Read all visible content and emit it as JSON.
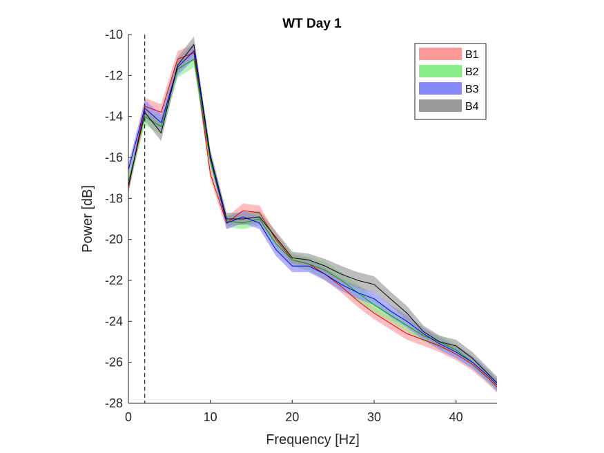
{
  "chart_data": {
    "type": "line",
    "title": "WT Day 1",
    "xlabel": "Frequency [Hz]",
    "ylabel": "Power [dB]",
    "xlim": [
      0,
      45
    ],
    "ylim": [
      -28,
      -10
    ],
    "xticks": [
      0,
      10,
      20,
      30,
      40
    ],
    "yticks": [
      -28,
      -26,
      -24,
      -22,
      -20,
      -18,
      -16,
      -14,
      -12,
      -10
    ],
    "xtick_labels": [
      "0",
      "10",
      "20",
      "30",
      "40"
    ],
    "ytick_labels": [
      "-28",
      "-26",
      "-24",
      "-22",
      "-20",
      "-18",
      "-16",
      "-14",
      "-12",
      "-10"
    ],
    "grid": false,
    "legend_position": "top-right",
    "reference_line_x": 2,
    "x": [
      0,
      2,
      4,
      6,
      8,
      10,
      12,
      14,
      16,
      18,
      20,
      22,
      24,
      26,
      28,
      30,
      32,
      34,
      36,
      38,
      40,
      42,
      44,
      45
    ],
    "series": [
      {
        "name": "B1",
        "line_color": "#e00000",
        "band_color": "#ff9999",
        "values": [
          -17.5,
          -13.5,
          -13.8,
          -11.2,
          -10.9,
          -16.8,
          -19.2,
          -18.6,
          -18.7,
          -20.0,
          -21.0,
          -21.2,
          -21.7,
          -22.3,
          -23.0,
          -23.6,
          -24.1,
          -24.6,
          -24.9,
          -25.2,
          -25.6,
          -26.1,
          -26.8,
          -27.2
        ],
        "band_halfwidth": [
          0.3,
          0.4,
          0.4,
          0.4,
          0.4,
          0.3,
          0.3,
          0.35,
          0.35,
          0.3,
          0.3,
          0.3,
          0.3,
          0.3,
          0.3,
          0.3,
          0.3,
          0.3,
          0.3,
          0.3,
          0.3,
          0.3,
          0.3,
          0.3
        ]
      },
      {
        "name": "B2",
        "line_color": "#00a000",
        "band_color": "#88ee88",
        "values": [
          -17.2,
          -14.0,
          -14.5,
          -11.7,
          -11.2,
          -16.2,
          -19.1,
          -19.2,
          -19.0,
          -20.2,
          -21.0,
          -21.2,
          -21.5,
          -22.0,
          -22.6,
          -23.2,
          -23.7,
          -24.2,
          -24.7,
          -25.0,
          -25.4,
          -26.0,
          -26.7,
          -27.1
        ],
        "band_halfwidth": [
          0.3,
          0.4,
          0.4,
          0.4,
          0.4,
          0.3,
          0.3,
          0.3,
          0.3,
          0.3,
          0.3,
          0.35,
          0.4,
          0.4,
          0.4,
          0.35,
          0.3,
          0.3,
          0.3,
          0.3,
          0.3,
          0.3,
          0.3,
          0.3
        ]
      },
      {
        "name": "B3",
        "line_color": "#0000e0",
        "band_color": "#8888ff",
        "values": [
          -16.6,
          -13.6,
          -14.3,
          -11.6,
          -10.8,
          -16.0,
          -19.2,
          -18.9,
          -19.2,
          -20.5,
          -21.3,
          -21.3,
          -21.7,
          -22.2,
          -22.6,
          -22.9,
          -23.5,
          -24.0,
          -24.6,
          -25.1,
          -25.5,
          -26.0,
          -26.7,
          -27.1
        ],
        "band_halfwidth": [
          0.3,
          0.4,
          0.4,
          0.4,
          0.4,
          0.3,
          0.3,
          0.3,
          0.3,
          0.3,
          0.3,
          0.3,
          0.3,
          0.3,
          0.3,
          0.3,
          0.3,
          0.3,
          0.3,
          0.3,
          0.3,
          0.3,
          0.3,
          0.3
        ]
      },
      {
        "name": "B4",
        "line_color": "#000000",
        "band_color": "#999999",
        "values": [
          -17.4,
          -13.8,
          -14.8,
          -11.5,
          -10.5,
          -15.9,
          -19.0,
          -19.0,
          -18.9,
          -19.9,
          -20.9,
          -21.0,
          -21.3,
          -21.7,
          -22.0,
          -22.2,
          -22.9,
          -23.6,
          -24.5,
          -25.0,
          -25.2,
          -25.8,
          -26.6,
          -27.0
        ],
        "band_halfwidth": [
          0.3,
          0.4,
          0.4,
          0.4,
          0.4,
          0.3,
          0.3,
          0.3,
          0.3,
          0.3,
          0.3,
          0.3,
          0.35,
          0.4,
          0.4,
          0.4,
          0.35,
          0.35,
          0.3,
          0.3,
          0.3,
          0.3,
          0.3,
          0.3
        ]
      }
    ]
  }
}
